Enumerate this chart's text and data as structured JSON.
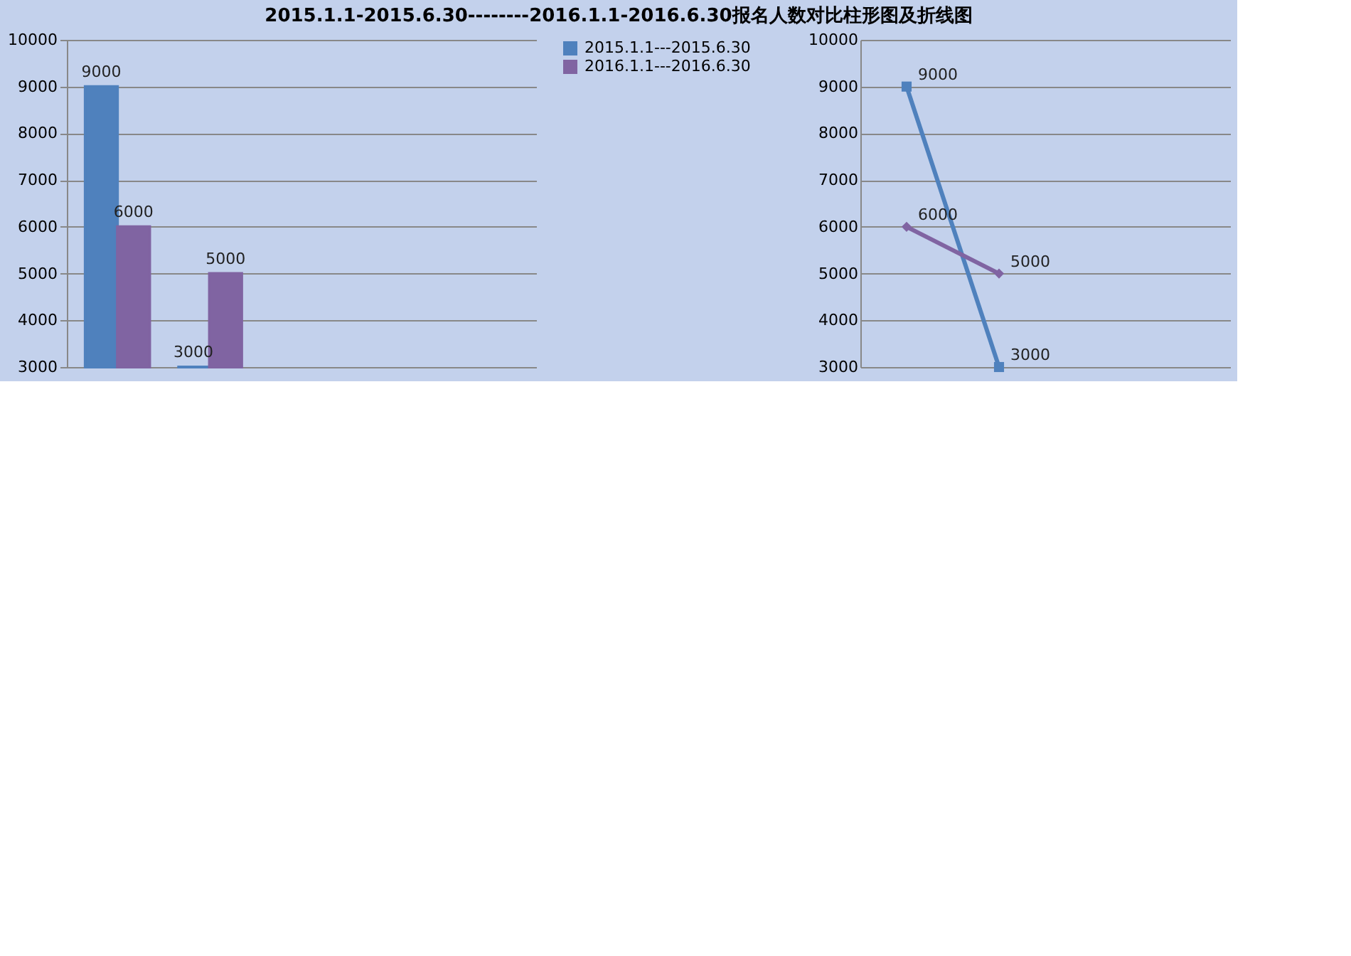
{
  "chart_data": [
    {
      "type": "bar",
      "title": "2015.1.1-2015.6.30--------2016.1.1-2016.6.30报名人数对比柱形图及折线图",
      "categories": [
        null,
        null,
        null,
        null,
        null
      ],
      "series": [
        {
          "name": "2015.1.1---2015.6.30",
          "color": "#4f81bd",
          "values": [
            9000,
            3000,
            null,
            null,
            null
          ]
        },
        {
          "name": "2016.1.1---2016.6.30",
          "color": "#8064a2",
          "values": [
            6000,
            5000,
            null,
            null,
            null
          ]
        }
      ],
      "ylim": [
        3000,
        10000
      ],
      "yticks": [
        3000,
        4000,
        5000,
        6000,
        7000,
        8000,
        9000,
        10000
      ],
      "grid": "y",
      "legend": "right",
      "data_labels": true,
      "tick_labels": "y"
    },
    {
      "type": "line",
      "categories": [
        null,
        null,
        null,
        null
      ],
      "series": [
        {
          "color": "#4f81bd",
          "values": [
            9000,
            3000,
            null,
            null
          ],
          "marker": "square"
        },
        {
          "color": "#8064a2",
          "values": [
            6000,
            5000,
            null,
            null
          ],
          "marker": "diamond"
        }
      ],
      "ylim": [
        3000,
        10000
      ],
      "yticks": [
        3000,
        4000,
        5000,
        6000,
        7000,
        8000,
        9000,
        10000
      ],
      "grid": "y",
      "legend": false,
      "data_labels": true,
      "tick_labels": "y"
    }
  ]
}
